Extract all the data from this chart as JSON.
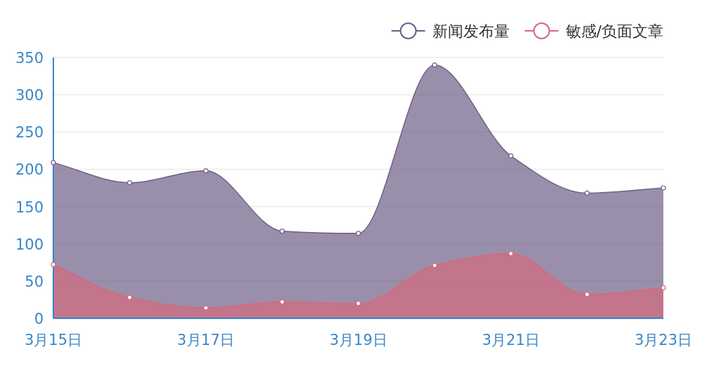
{
  "chart_data": {
    "type": "area",
    "categories": [
      "3月15日",
      null,
      "3月17日",
      null,
      "3月19日",
      null,
      "3月21日",
      null,
      "3月23日"
    ],
    "series": [
      {
        "name": "新闻发布量",
        "color": "#6f5f88",
        "values": [
          209,
          182,
          198,
          117,
          114,
          340,
          218,
          168,
          175
        ]
      },
      {
        "name": "敏感/负面文章",
        "color": "#d46a7e",
        "values": [
          72,
          28,
          14,
          22,
          20,
          71,
          87,
          32,
          41
        ]
      }
    ],
    "ylim": [
      0,
      350
    ],
    "yticks": [
      0,
      50,
      100,
      150,
      200,
      250,
      300,
      350
    ],
    "grid": "y",
    "legend": "top right",
    "marker": "circle",
    "line_style": "solid"
  }
}
